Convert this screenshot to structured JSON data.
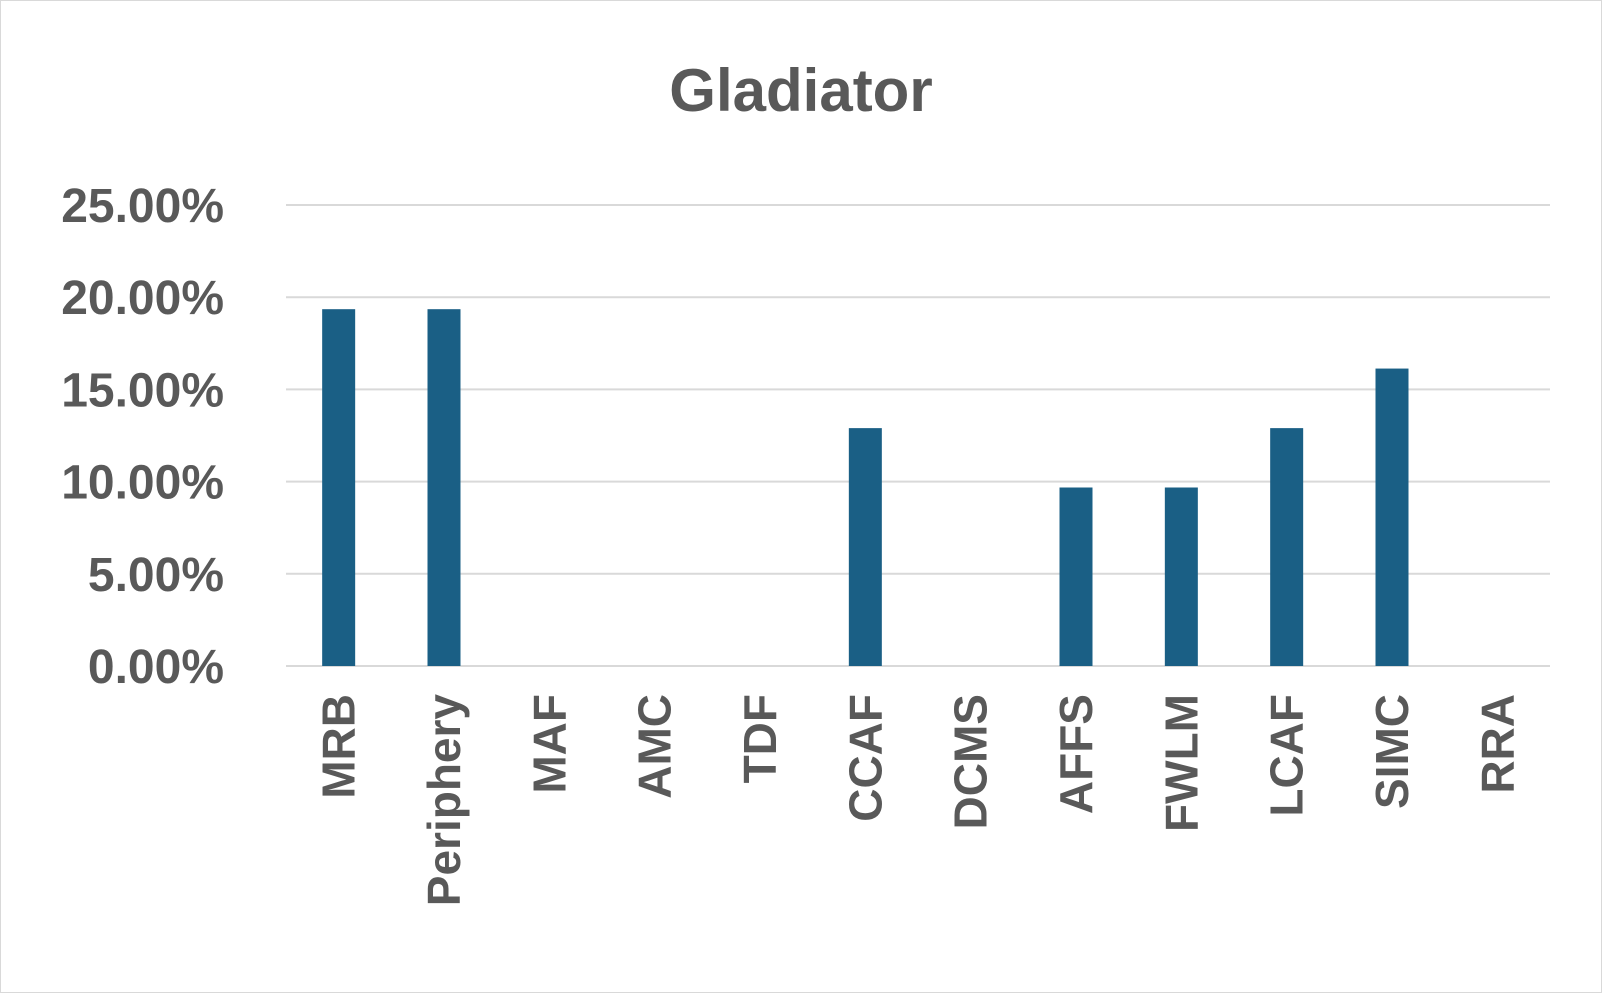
{
  "chart_data": {
    "type": "bar",
    "title": "Gladiator",
    "xlabel": "",
    "ylabel": "",
    "ylim": [
      0,
      0.25
    ],
    "y_tick_labels": [
      "0.00%",
      "5.00%",
      "10.00%",
      "15.00%",
      "20.00%",
      "25.00%"
    ],
    "y_tick_values": [
      0,
      0.05,
      0.1,
      0.15,
      0.2,
      0.25
    ],
    "categories": [
      "MRB",
      "Periphery",
      "MAF",
      "AMC",
      "TDF",
      "CCAF",
      "DCMS",
      "AFFS",
      "FWLM",
      "LCAF",
      "SIMC",
      "RRA"
    ],
    "values": [
      0.1935,
      0.1935,
      0,
      0,
      0,
      0.129,
      0,
      0.0968,
      0.0968,
      0.129,
      0.1613,
      0
    ],
    "bar_color": "#1a5f85",
    "grid": true,
    "legend": "none"
  }
}
